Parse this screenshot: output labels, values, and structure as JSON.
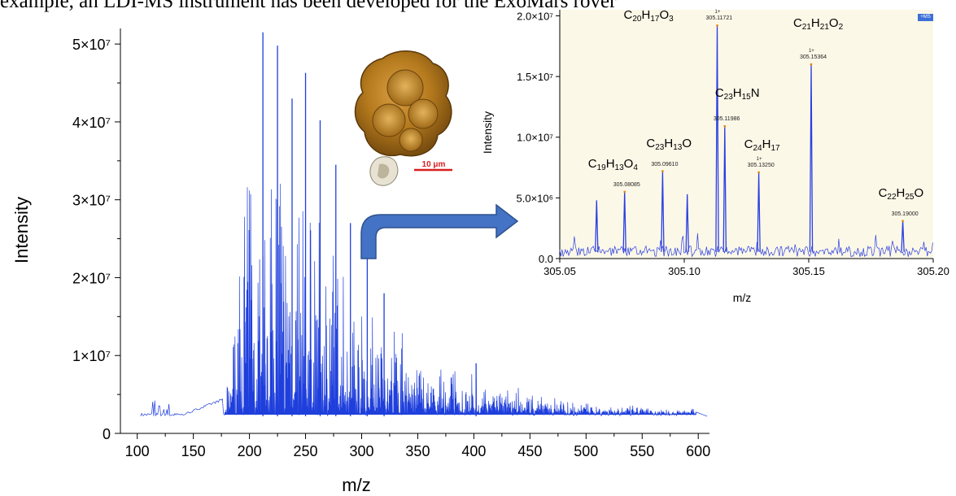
{
  "caption": "example, an LDI-MS instrument has been developed for the ExoMars rover",
  "micrograph": {
    "scale_label": "10 μm"
  },
  "chart_data": [
    {
      "type": "line",
      "title": "",
      "xlabel": "m/z",
      "ylabel": "Intensity",
      "xlim": [
        85,
        610
      ],
      "ylim": [
        0,
        52000000
      ],
      "xticks": [
        "100",
        "150",
        "200",
        "250",
        "300",
        "350",
        "400",
        "450",
        "500",
        "550",
        "600"
      ],
      "yticks": [
        "0",
        "1×10⁷",
        "2×10⁷",
        "3×10⁷",
        "4×10⁷",
        "5×10⁷"
      ],
      "series_color": "#1f3fdc",
      "major_peaks": [
        {
          "x": 212,
          "y": 51500000
        },
        {
          "x": 225,
          "y": 49800000
        },
        {
          "x": 238,
          "y": 43000000
        },
        {
          "x": 250,
          "y": 46300000
        },
        {
          "x": 263,
          "y": 40200000
        },
        {
          "x": 277,
          "y": 34500000
        },
        {
          "x": 290,
          "y": 27000000
        },
        {
          "x": 305,
          "y": 24000000
        },
        {
          "x": 320,
          "y": 18000000
        },
        {
          "x": 402,
          "y": 9000000
        }
      ]
    },
    {
      "type": "line",
      "title": "",
      "xlabel": "m/z",
      "ylabel": "Intensity",
      "xlim": [
        305.05,
        305.2
      ],
      "ylim": [
        0,
        20500000
      ],
      "xticks": [
        "305.05",
        "305.10",
        "305.15",
        "305.20"
      ],
      "yticks": [
        "0.0",
        "5.0×10⁶",
        "1.0×10⁷",
        "1.5×10⁷",
        "2.0×10⁷"
      ],
      "badge": "+MS",
      "peaks": [
        {
          "mz": 305.0648,
          "y": 4800000,
          "label": "",
          "value": ""
        },
        {
          "mz": 305.07606,
          "y": 5500000,
          "label": "C19H13O4",
          "value": "305.08085"
        },
        {
          "mz": 305.0913,
          "y": 7200000,
          "label": "C23H13O",
          "value": "305.09610"
        },
        {
          "mz": 305.1012,
          "y": 5300000,
          "label": "",
          "value": ""
        },
        {
          "mz": 305.11325,
          "y": 19200000,
          "label": "C20H17O3",
          "value": "305.11721",
          "charge": "1+"
        },
        {
          "mz": 305.11628,
          "y": 10900000,
          "label": "C23H15N",
          "value": "305.11986"
        },
        {
          "mz": 305.12995,
          "y": 7100000,
          "label": "C24H17",
          "value": "305.13250",
          "charge": "1+"
        },
        {
          "mz": 305.15097,
          "y": 16000000,
          "label": "C21H21O2",
          "value": "305.15364",
          "charge": "1+"
        },
        {
          "mz": 305.18777,
          "y": 3100000,
          "label": "C22H25O",
          "value": "305.19000"
        }
      ]
    }
  ]
}
